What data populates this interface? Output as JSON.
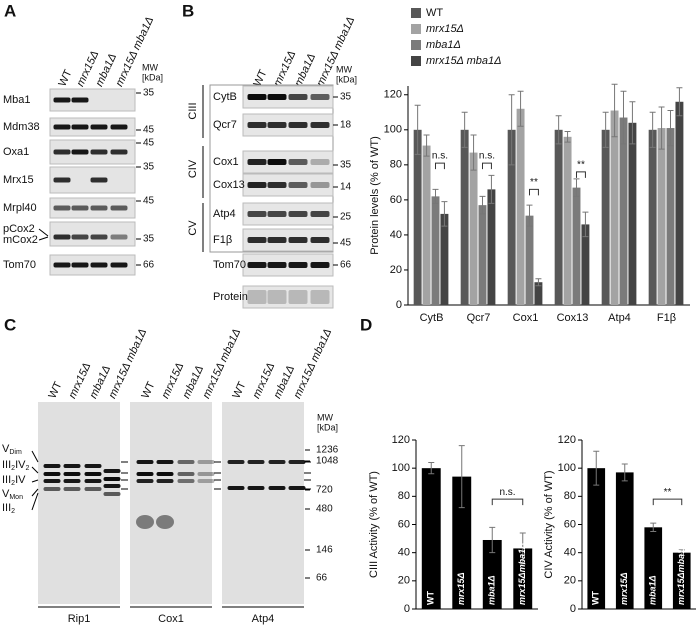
{
  "panel_letters": [
    "A",
    "B",
    "C",
    "D"
  ],
  "mw_title": "MW",
  "mw_unit": "[kDa]",
  "panel_a": {
    "lanes": [
      "WT",
      "mrx15Δ",
      "mba1Δ",
      "mrx15Δ mba1Δ"
    ],
    "rows": [
      "Mba1",
      "Mdm38",
      "Oxa1",
      "Mrx15",
      "Mrpl40",
      "pCox2",
      "mCox2",
      "Tom70"
    ],
    "mw": [
      35,
      45,
      45,
      35,
      45,
      35,
      66
    ]
  },
  "panel_b_blot": {
    "lanes": [
      "WT",
      "mrx15Δ",
      "mba1Δ",
      "mrx15Δ mba1Δ"
    ],
    "groups": [
      "CIII",
      "CIV",
      "CV"
    ],
    "rows": [
      "CytB",
      "Qcr7",
      "Cox1",
      "Cox13",
      "Atp4",
      "F1β",
      "Tom70",
      "Protein"
    ],
    "mw": [
      35,
      18,
      35,
      14,
      25,
      45,
      66
    ]
  },
  "panel_c": {
    "lanes": [
      "WT",
      "mrx15Δ",
      "mba1Δ",
      "mrx15Δ mba1Δ"
    ],
    "complexes": [
      [
        {
          "text": "V"
        },
        {
          "text": "Dim",
          "sub": true
        }
      ],
      [
        {
          "text": "III"
        },
        {
          "text": "2",
          "sub": true
        },
        {
          "text": "IV"
        },
        {
          "text": "2",
          "sub": true
        }
      ],
      [
        {
          "text": "III"
        },
        {
          "text": "2",
          "sub": true
        },
        {
          "text": "IV"
        }
      ],
      [
        {
          "text": "V"
        },
        {
          "text": "Mon",
          "sub": true
        }
      ],
      [
        {
          "text": "III"
        },
        {
          "text": "2",
          "sub": true
        }
      ]
    ],
    "mw": [
      1236,
      1048,
      720,
      480,
      146,
      66
    ],
    "blots": [
      "Rip1",
      "Cox1",
      "Atp4"
    ]
  },
  "chart_data": [
    {
      "type": "bar",
      "ylabel": "Protein levels (% of WT)",
      "categories": [
        "CytB",
        "Qcr7",
        "Cox1",
        "Cox13",
        "Atp4",
        "F1β"
      ],
      "series": [
        {
          "name": "WT",
          "color": "#585858",
          "values": [
            100,
            100,
            100,
            100,
            100,
            100
          ],
          "errors": [
            14,
            10,
            20,
            8,
            10,
            10
          ]
        },
        {
          "name": "mrx15Δ",
          "color": "#a3a3a3",
          "values": [
            91,
            87,
            112,
            96,
            111,
            101
          ],
          "errors": [
            6,
            10,
            10,
            3,
            15,
            12
          ]
        },
        {
          "name": "mba1Δ",
          "color": "#7b7b7b",
          "values": [
            62,
            57,
            51,
            67,
            107,
            101
          ],
          "errors": [
            4,
            5,
            6,
            5,
            15,
            10
          ]
        },
        {
          "name": "mrx15Δ mba1Δ",
          "color": "#444444",
          "values": [
            52,
            66,
            13,
            46,
            104,
            116
          ],
          "errors": [
            7,
            8,
            2,
            7,
            12,
            8
          ]
        }
      ],
      "ylim": [
        0,
        125
      ],
      "yticks": [
        0,
        20,
        40,
        60,
        80,
        100,
        120
      ],
      "legend": "top-left",
      "annotations": [
        {
          "text": "n.s.",
          "category": 0,
          "series": [
            2,
            3
          ],
          "y": 81
        },
        {
          "text": "n.s.",
          "category": 1,
          "series": [
            2,
            3
          ],
          "y": 81
        },
        {
          "text": "**",
          "category": 2,
          "series": [
            2,
            3
          ],
          "y": 66
        },
        {
          "text": "**",
          "category": 3,
          "series": [
            2,
            3
          ],
          "y": 76
        }
      ]
    },
    {
      "type": "bar",
      "ylabel": "CIII Activity (% of WT)",
      "categories": [
        "WT",
        "mrx15Δ",
        "mba1Δ",
        "mrx15Δmba1Δ"
      ],
      "values": [
        100,
        94,
        49,
        43
      ],
      "errors": [
        4,
        22,
        9,
        11
      ],
      "color": "#000000",
      "ylim": [
        0,
        120
      ],
      "yticks": [
        0,
        20,
        40,
        60,
        80,
        100,
        120
      ],
      "annotations": [
        {
          "text": "n.s.",
          "from": 2,
          "to": 3,
          "y": 78
        }
      ]
    },
    {
      "type": "bar",
      "ylabel": "CIV Activity (% of WT)",
      "categories": [
        "WT",
        "mrx15Δ",
        "mba1Δ",
        "mrx15Δmba1Δ"
      ],
      "values": [
        100,
        97,
        58,
        40
      ],
      "errors": [
        12,
        6,
        3,
        2
      ],
      "color": "#000000",
      "ylim": [
        0,
        120
      ],
      "yticks": [
        0,
        20,
        40,
        60,
        80,
        100,
        120
      ],
      "annotations": [
        {
          "text": "**",
          "from": 2,
          "to": 3,
          "y": 78
        }
      ]
    }
  ]
}
